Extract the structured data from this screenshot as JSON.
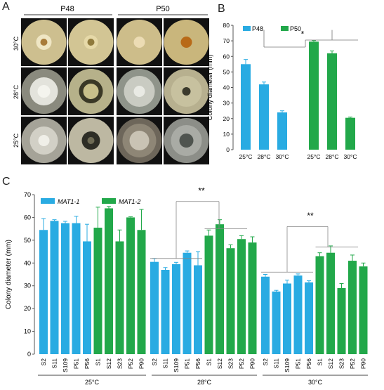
{
  "panel_a": {
    "label": "A",
    "groups": [
      "P48",
      "P50"
    ],
    "rows": [
      "30°C",
      "28°C",
      "25°C"
    ]
  },
  "panel_b": {
    "label": "B"
  },
  "panel_c": {
    "label": "C"
  },
  "colors": {
    "blue": "#29ABE2",
    "green": "#22A84A",
    "axis": "#555555"
  },
  "chart_data": [
    {
      "type": "bar",
      "panel": "B",
      "ylabel": "Colony diameter (mm)",
      "ylim": [
        0,
        80
      ],
      "yticks": [
        0,
        10,
        20,
        30,
        40,
        50,
        60,
        70,
        80
      ],
      "categories": [
        "25°C",
        "28°C",
        "30°C"
      ],
      "series": [
        {
          "name": "P48",
          "color": "#29ABE2",
          "values": [
            55,
            42,
            24
          ],
          "errors": [
            3,
            1.5,
            1
          ]
        },
        {
          "name": "P50",
          "color": "#22A84A",
          "values": [
            69.5,
            62,
            20.5
          ],
          "errors": [
            0.7,
            1.5,
            0.5
          ]
        }
      ],
      "annotation": "*",
      "legend": "top"
    },
    {
      "type": "bar",
      "panel": "C",
      "ylabel": "Colony diameter (mm)",
      "ylim": [
        0,
        70
      ],
      "yticks": [
        0,
        10,
        20,
        30,
        40,
        50,
        60,
        70
      ],
      "legend_entries": [
        {
          "name": "MAT1-1",
          "color": "#29ABE2"
        },
        {
          "name": "MAT1-2",
          "color": "#22A84A"
        }
      ],
      "groups": [
        {
          "label": "25°C",
          "strains": [
            "S2",
            "S11",
            "S109",
            "P51",
            "P56",
            "S1",
            "S12",
            "S23",
            "P52",
            "P90"
          ],
          "types": [
            "MAT1-1",
            "MAT1-1",
            "MAT1-1",
            "MAT1-1",
            "MAT1-1",
            "MAT1-2",
            "MAT1-2",
            "MAT1-2",
            "MAT1-2",
            "MAT1-2"
          ],
          "values": [
            54.5,
            58.5,
            57.5,
            57.5,
            49.5,
            55.5,
            64,
            49.5,
            60,
            54.5
          ],
          "errors": [
            5,
            0.5,
            0.8,
            3,
            7.5,
            9,
            0.8,
            5,
            0.3,
            9
          ]
        },
        {
          "label": "28°C",
          "strains": [
            "S2",
            "S11",
            "S109",
            "P51",
            "P56",
            "S1",
            "S12",
            "S23",
            "P52",
            "P90"
          ],
          "types": [
            "MAT1-1",
            "MAT1-1",
            "MAT1-1",
            "MAT1-1",
            "MAT1-1",
            "MAT1-2",
            "MAT1-2",
            "MAT1-2",
            "MAT1-2",
            "MAT1-2"
          ],
          "values": [
            40.5,
            37,
            39.5,
            44.5,
            39,
            52,
            57,
            46.5,
            50.5,
            49
          ],
          "errors": [
            1.5,
            1,
            0.8,
            0.8,
            6,
            2.5,
            2,
            1.5,
            1.5,
            2.5
          ]
        },
        {
          "label": "30°C",
          "strains": [
            "S2",
            "S11",
            "S109",
            "P51",
            "P56",
            "S1",
            "S12",
            "S23",
            "P52",
            "P90"
          ],
          "types": [
            "MAT1-1",
            "MAT1-1",
            "MAT1-1",
            "MAT1-1",
            "MAT1-1",
            "MAT1-2",
            "MAT1-2",
            "MAT1-2",
            "MAT1-2",
            "MAT1-2"
          ],
          "values": [
            34,
            27.5,
            31,
            34.5,
            31.5,
            43,
            44.5,
            29,
            41,
            38.5
          ],
          "errors": [
            1,
            0.5,
            1.5,
            0.7,
            0.7,
            1.5,
            3,
            2,
            2.5,
            1.5
          ]
        }
      ],
      "annotations": [
        "**",
        "**"
      ]
    }
  ]
}
